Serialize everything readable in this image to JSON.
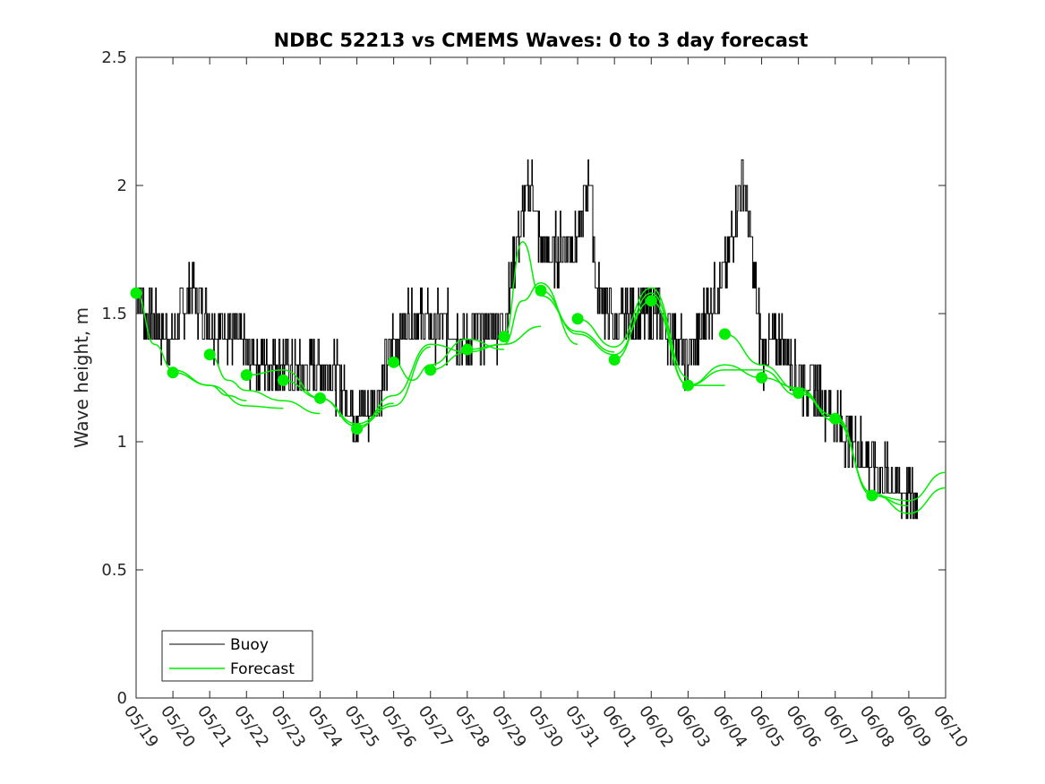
{
  "chart_data": {
    "type": "line",
    "title": "NDBC 52213 vs CMEMS Waves: 0 to 3 day forecast",
    "xlabel": "",
    "ylabel": "Wave height, m",
    "x_range": [
      "2024-05-19",
      "2024-06-10"
    ],
    "ylim": [
      0,
      2.5
    ],
    "y_ticks": [
      "0",
      "0.5",
      "1",
      "1.5",
      "2",
      "2.5"
    ],
    "x_ticks": [
      "05/19",
      "05/20",
      "05/21",
      "05/22",
      "05/23",
      "05/24",
      "05/25",
      "05/26",
      "05/27",
      "05/28",
      "05/29",
      "05/30",
      "05/31",
      "06/01",
      "06/02",
      "06/03",
      "06/04",
      "06/05",
      "06/06",
      "06/07",
      "06/08",
      "06/09",
      "06/10"
    ],
    "grid": false,
    "legend": {
      "position": "bottom-left",
      "entries": [
        "Buoy",
        "Forecast"
      ]
    },
    "colors": {
      "buoy": "#000000",
      "forecast": "#00ee00"
    },
    "buoy": {
      "name": "Buoy",
      "x": [
        "05/19",
        "05/19 06h",
        "05/19 12h",
        "05/20",
        "05/20 12h",
        "05/21",
        "05/21 12h",
        "05/22",
        "05/22 12h",
        "05/23",
        "05/23 12h",
        "05/24",
        "05/24 12h",
        "05/25",
        "05/25 12h",
        "05/26",
        "05/26 12h",
        "05/27",
        "05/27 12h",
        "05/28",
        "05/28 12h",
        "05/29",
        "05/29 12h",
        "05/29 18h",
        "05/30",
        "05/30 12h",
        "05/31",
        "05/31 08h",
        "05/31 12h",
        "06/01",
        "06/01 12h",
        "06/02",
        "06/02 12h",
        "06/03",
        "06/03 12h",
        "06/04",
        "06/04 12h",
        "06/05",
        "06/05 12h",
        "06/06",
        "06/06 12h",
        "06/07",
        "06/07 12h",
        "06/08",
        "06/08 12h",
        "06/09",
        "06/09 06h"
      ],
      "y": [
        1.6,
        1.5,
        1.45,
        1.4,
        1.6,
        1.45,
        1.45,
        1.35,
        1.3,
        1.3,
        1.25,
        1.3,
        1.25,
        1.1,
        1.15,
        1.4,
        1.5,
        1.45,
        1.45,
        1.4,
        1.45,
        1.45,
        1.9,
        2.0,
        1.75,
        1.75,
        1.8,
        2.05,
        1.6,
        1.45,
        1.5,
        1.5,
        1.45,
        1.3,
        1.5,
        1.65,
        2.05,
        1.35,
        1.4,
        1.25,
        1.2,
        1.1,
        1.0,
        0.9,
        0.85,
        0.8,
        0.75
      ]
    },
    "forecast_series": [
      {
        "start": "05/19",
        "x": [
          "05/19",
          "05/19 12h",
          "05/20",
          "05/21",
          "05/21 12h",
          "05/22"
        ],
        "y": [
          1.58,
          1.38,
          1.28,
          1.22,
          1.18,
          1.16
        ]
      },
      {
        "start": "05/20",
        "x": [
          "05/20",
          "05/21",
          "05/22",
          "05/23"
        ],
        "y": [
          1.27,
          1.22,
          1.14,
          1.13
        ]
      },
      {
        "start": "05/21",
        "x": [
          "05/21",
          "05/21 12h",
          "05/22",
          "05/23",
          "05/24"
        ],
        "y": [
          1.34,
          1.24,
          1.2,
          1.16,
          1.11
        ]
      },
      {
        "start": "05/22",
        "x": [
          "05/22",
          "05/23",
          "05/24",
          "05/25"
        ],
        "y": [
          1.26,
          1.28,
          1.17,
          1.06
        ]
      },
      {
        "start": "05/23",
        "x": [
          "05/23",
          "05/24",
          "05/25",
          "05/26"
        ],
        "y": [
          1.24,
          1.17,
          1.07,
          1.15
        ]
      },
      {
        "start": "05/24",
        "x": [
          "05/24",
          "05/25",
          "05/26",
          "05/27"
        ],
        "y": [
          1.17,
          1.06,
          1.14,
          1.37
        ]
      },
      {
        "start": "05/25",
        "x": [
          "05/25",
          "05/26",
          "05/27",
          "05/28"
        ],
        "y": [
          1.05,
          1.18,
          1.38,
          1.35
        ]
      },
      {
        "start": "05/26",
        "x": [
          "05/26",
          "05/26 12h",
          "05/27",
          "05/28",
          "05/29"
        ],
        "y": [
          1.31,
          1.24,
          1.3,
          1.4,
          1.36
        ]
      },
      {
        "start": "05/27",
        "x": [
          "05/27",
          "05/28",
          "05/29",
          "05/30"
        ],
        "y": [
          1.28,
          1.35,
          1.38,
          1.45
        ]
      },
      {
        "start": "05/28",
        "x": [
          "05/28",
          "05/29",
          "05/29 12h",
          "05/30",
          "05/31"
        ],
        "y": [
          1.36,
          1.38,
          1.55,
          1.62,
          1.38
        ]
      },
      {
        "start": "05/29",
        "x": [
          "05/29",
          "05/29 12h",
          "05/30",
          "05/31",
          "06/01"
        ],
        "y": [
          1.41,
          1.78,
          1.57,
          1.43,
          1.35
        ]
      },
      {
        "start": "05/30",
        "x": [
          "05/30",
          "05/31",
          "06/01",
          "06/02"
        ],
        "y": [
          1.59,
          1.42,
          1.34,
          1.55
        ]
      },
      {
        "start": "05/31",
        "x": [
          "05/31",
          "06/01",
          "06/02",
          "06/03"
        ],
        "y": [
          1.48,
          1.37,
          1.6,
          1.25
        ]
      },
      {
        "start": "06/01",
        "x": [
          "06/01",
          "06/02",
          "06/03",
          "06/04"
        ],
        "y": [
          1.32,
          1.58,
          1.22,
          1.22
        ]
      },
      {
        "start": "06/02",
        "x": [
          "06/02",
          "06/03",
          "06/04",
          "06/05"
        ],
        "y": [
          1.55,
          1.22,
          1.3,
          1.25
        ]
      },
      {
        "start": "06/03",
        "x": [
          "06/03",
          "06/04",
          "06/05",
          "06/06"
        ],
        "y": [
          1.22,
          1.28,
          1.28,
          1.18
        ]
      },
      {
        "start": "06/04",
        "x": [
          "06/04",
          "06/05",
          "06/06",
          "06/07"
        ],
        "y": [
          1.42,
          1.3,
          1.2,
          1.08
        ]
      },
      {
        "start": "06/05",
        "x": [
          "06/05",
          "06/06",
          "06/07",
          "06/08"
        ],
        "y": [
          1.25,
          1.21,
          1.08,
          0.8
        ]
      },
      {
        "start": "06/06",
        "x": [
          "06/06",
          "06/07",
          "06/08",
          "06/09"
        ],
        "y": [
          1.19,
          1.1,
          0.79,
          0.75
        ]
      },
      {
        "start": "06/07",
        "x": [
          "06/07",
          "06/08",
          "06/09",
          "06/10"
        ],
        "y": [
          1.09,
          0.8,
          0.72,
          0.82
        ]
      },
      {
        "start": "06/08",
        "x": [
          "06/08",
          "06/09",
          "06/10"
        ],
        "y": [
          0.79,
          0.77,
          0.88
        ]
      }
    ]
  }
}
